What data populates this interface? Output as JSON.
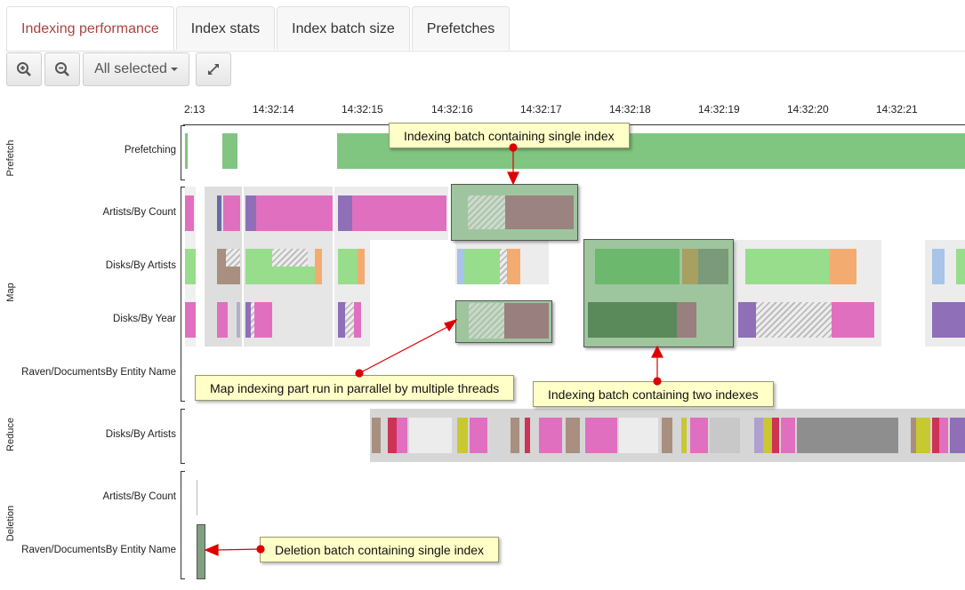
{
  "tabs": [
    {
      "label": "Indexing performance",
      "active": true
    },
    {
      "label": "Index stats",
      "active": false
    },
    {
      "label": "Index batch size",
      "active": false
    },
    {
      "label": "Prefetches",
      "active": false
    }
  ],
  "toolbar": {
    "zoom_in_icon": "zoom-in-icon",
    "zoom_out_icon": "zoom-out-icon",
    "select_label": "All selected",
    "expand_icon": "expand-icon"
  },
  "axis": {
    "ticks": [
      "2:13",
      "14:32:14",
      "14:32:15",
      "14:32:16",
      "14:32:17",
      "14:32:18",
      "14:32:19",
      "14:32:20",
      "14:32:21"
    ]
  },
  "groups": {
    "prefetch": "Prefetch",
    "map": "Map",
    "reduce": "Reduce",
    "deletion": "Deletion"
  },
  "lanes": {
    "prefetching": "Prefetching",
    "map_artists_by_count": "Artists/By Count",
    "map_disks_by_artists": "Disks/By Artists",
    "map_disks_by_year": "Disks/By Year",
    "map_raven_docs": "Raven/DocumentsBy Entity Name",
    "reduce_disks_by_artists": "Disks/By Artists",
    "deletion_artists_by_count": "Artists/By Count",
    "deletion_raven_docs": "Raven/DocumentsBy Entity Name"
  },
  "callouts": {
    "single_index_batch": "Indexing batch containing single index",
    "parallel_threads": "Map indexing part run in parrallel by multiple threads",
    "two_indexes_batch": "Indexing batch containing two indexes",
    "deletion_batch": "Deletion batch containing single index"
  },
  "colors": {
    "active_tab": "#a94442",
    "prefetch_green": "#80c580",
    "pink": "#e06fc0",
    "light_green": "#98dd8b",
    "mauve": "#9a7f7f",
    "gray": "#9a9a9a",
    "callout_bg": "#ffffc8",
    "arrow": "#dd0000"
  }
}
